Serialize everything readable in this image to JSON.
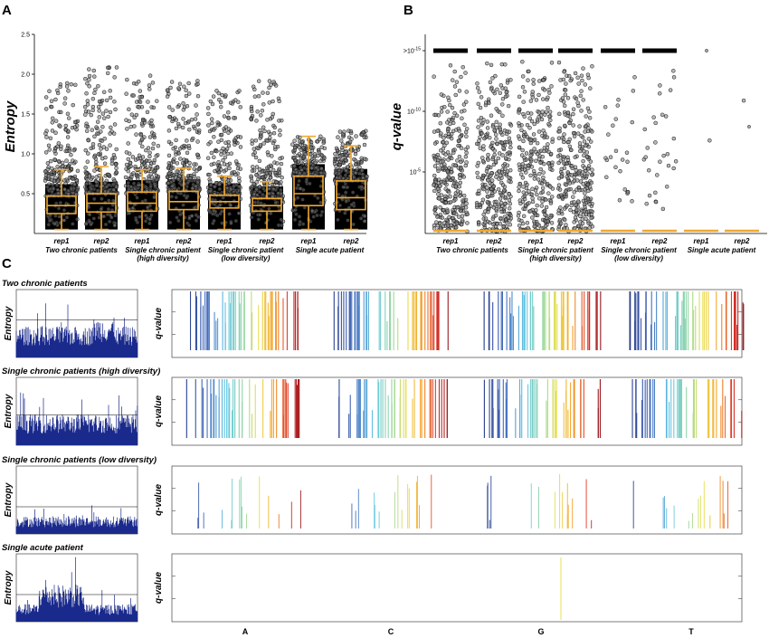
{
  "panels": {
    "a": "A",
    "b": "B",
    "c": "C"
  },
  "chart_data": [
    {
      "type": "box-scatter",
      "panel": "A",
      "ylabel": "Entropy",
      "ylim": [
        0,
        2.5
      ],
      "yticks": [
        "0.5",
        "1.0",
        "1.5",
        "2.0",
        "2.5"
      ],
      "groups": [
        {
          "label": "Two chronic patients",
          "sublabel": ""
        },
        {
          "label": "Single chronic patient",
          "sublabel": "(high diversity)"
        },
        {
          "label": "Single chronic patient",
          "sublabel": "(low diversity)"
        },
        {
          "label": "Single acute patient",
          "sublabel": ""
        }
      ],
      "reps": [
        "rep1",
        "rep2",
        "rep1",
        "rep2",
        "rep1",
        "rep2",
        "rep1",
        "rep2"
      ],
      "boxes": [
        {
          "min": 0.05,
          "q1": 0.25,
          "median": 0.35,
          "q3": 0.47,
          "max": 0.8,
          "points_max": 1.9
        },
        {
          "min": 0.05,
          "q1": 0.27,
          "median": 0.38,
          "q3": 0.5,
          "max": 0.84,
          "points_max": 2.1
        },
        {
          "min": 0.05,
          "q1": 0.28,
          "median": 0.38,
          "q3": 0.52,
          "max": 0.8,
          "points_max": 2.0
        },
        {
          "min": 0.05,
          "q1": 0.3,
          "median": 0.4,
          "q3": 0.53,
          "max": 0.82,
          "points_max": 2.0
        },
        {
          "min": 0.05,
          "q1": 0.32,
          "median": 0.4,
          "q3": 0.48,
          "max": 0.72,
          "points_max": 1.8
        },
        {
          "min": 0.05,
          "q1": 0.28,
          "median": 0.35,
          "q3": 0.44,
          "max": 0.65,
          "points_max": 1.95
        },
        {
          "min": 0.05,
          "q1": 0.35,
          "median": 0.5,
          "q3": 0.72,
          "max": 1.22,
          "points_max": 1.22
        },
        {
          "min": 0.05,
          "q1": 0.3,
          "median": 0.45,
          "q3": 0.66,
          "max": 1.1,
          "points_max": 1.3
        }
      ]
    },
    {
      "type": "scatter",
      "panel": "B",
      "ylabel": "q-value",
      "yticks": [
        ">10-15",
        "10-10",
        "10-5"
      ],
      "ytick_base": [
        "10",
        "10",
        "10"
      ],
      "ytick_exp": [
        "-15",
        "-10",
        "-5"
      ],
      "ytick_prefix": [
        ">",
        "",
        ""
      ],
      "groups": [
        {
          "label": "Two chronic patients",
          "sublabel": ""
        },
        {
          "label": "Single chronic patient",
          "sublabel": "(high diversity)"
        },
        {
          "label": "Single chronic patient",
          "sublabel": "(low diversity)"
        },
        {
          "label": "Single acute patient",
          "sublabel": ""
        }
      ],
      "reps": [
        "rep1",
        "rep2",
        "rep1",
        "rep2",
        "rep1",
        "rep2",
        "rep1",
        "rep2"
      ],
      "point_counts": [
        300,
        310,
        280,
        300,
        25,
        30,
        1,
        1
      ]
    },
    {
      "type": "spectrum",
      "panel": "C",
      "ylabel_left": "Entropy",
      "ylabel_right": "q-value",
      "bases": [
        "A",
        "C",
        "G",
        "T"
      ],
      "rows": [
        {
          "title": "Two chronic patients",
          "density": 55,
          "entropy_level": 0.35,
          "hline": 0.55
        },
        {
          "title": "Single chronic patients (high diversity)",
          "density": 45,
          "entropy_level": 0.35,
          "hline": 0.45
        },
        {
          "title": "Single chronic patients (low diversity)",
          "density": 15,
          "entropy_level": 0.2,
          "hline": 0.4
        },
        {
          "title": "Single acute patient",
          "density": 0,
          "entropy_level": 0.25,
          "hline": 0.4
        }
      ]
    }
  ]
}
